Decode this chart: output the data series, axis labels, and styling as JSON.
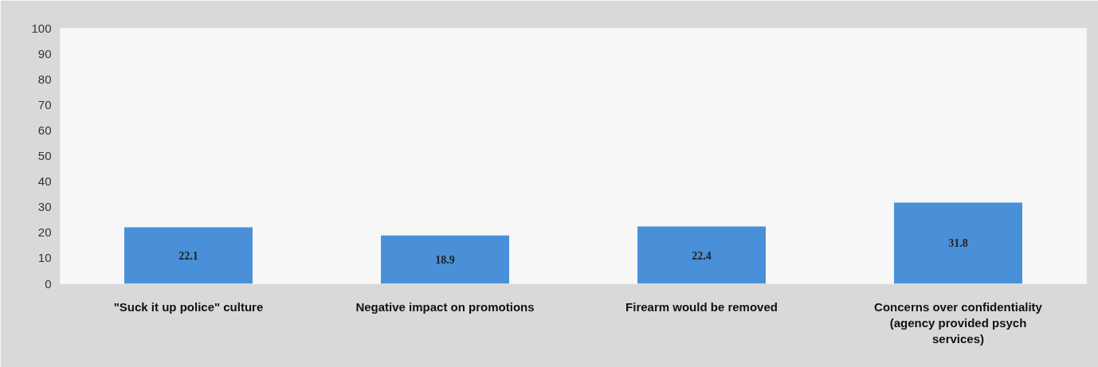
{
  "chart_data": {
    "type": "bar",
    "categories": [
      "\"Suck it up police\" culture",
      "Negative impact on promotions",
      "Firearm would be removed",
      "Concerns over confidentiality (agency provided psych services)"
    ],
    "values": [
      22.1,
      18.9,
      22.4,
      31.8
    ],
    "color": "#4a90d9",
    "ylim": [
      0,
      100
    ],
    "yticks": [
      0,
      10,
      20,
      30,
      40,
      50,
      60,
      70,
      80,
      90,
      100
    ],
    "grid": false,
    "data_labels": true
  }
}
